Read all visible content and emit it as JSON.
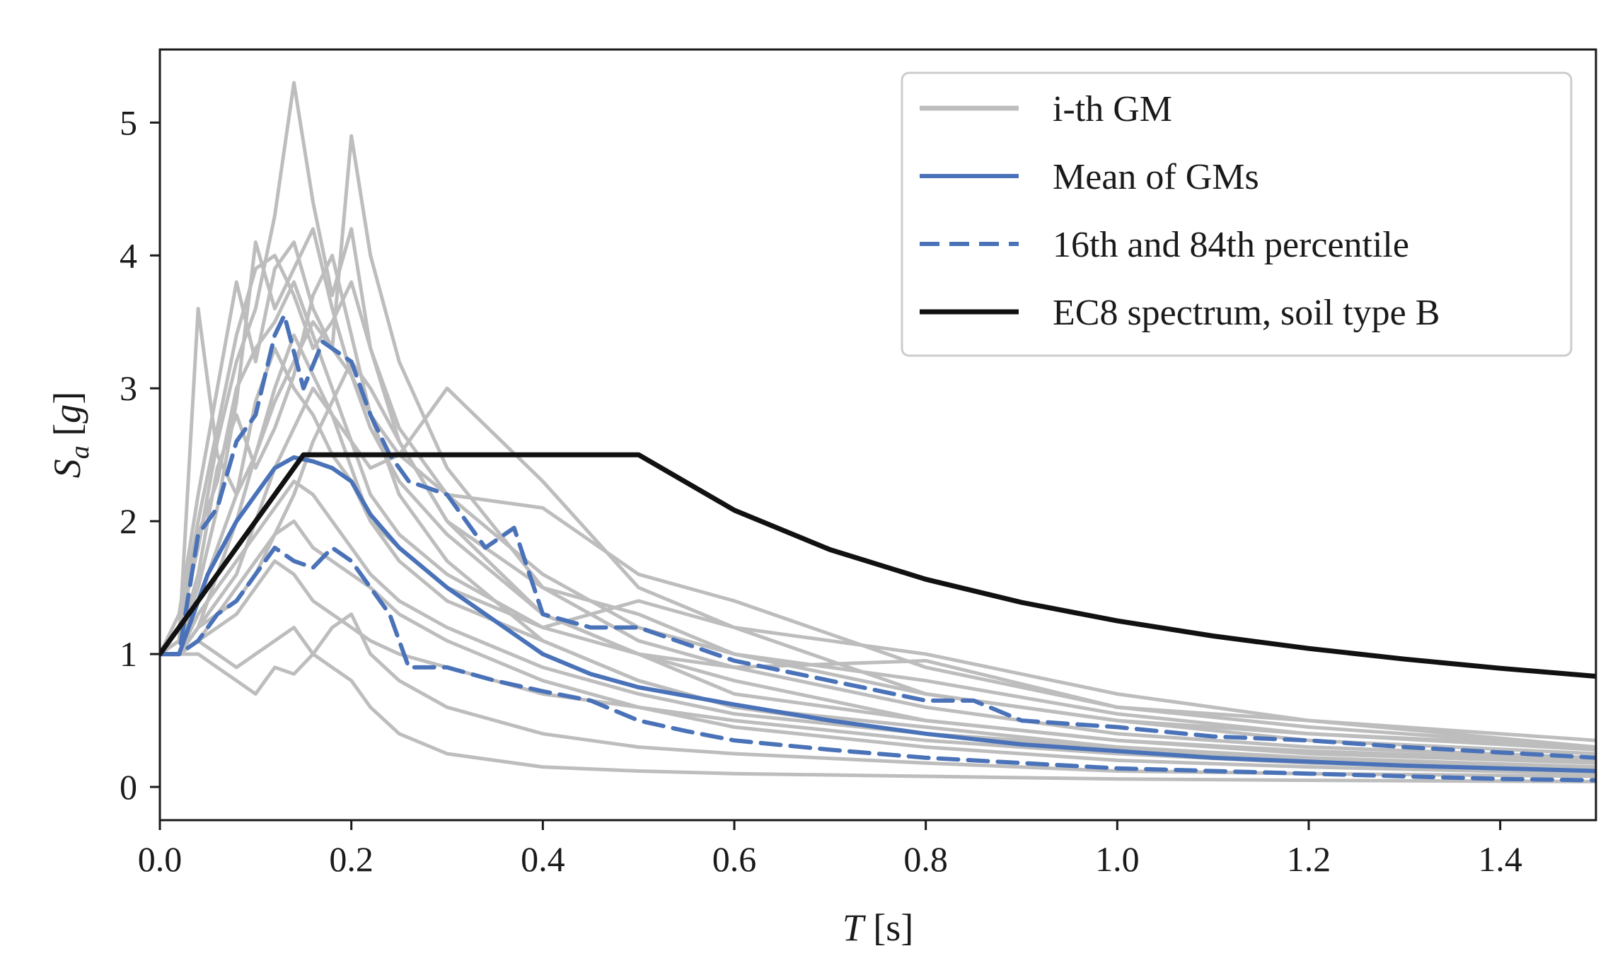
{
  "chart_data": {
    "type": "line",
    "title": "",
    "xlabel": {
      "main": "T",
      "unit": "[s]"
    },
    "ylabel": {
      "main": "S",
      "sub": "a",
      "unit_open": "[",
      "unit_var": "g",
      "unit_close": "]"
    },
    "xlim": [
      0.0,
      1.5
    ],
    "ylim": [
      -0.25,
      5.55
    ],
    "grid": false,
    "legend_position": "top-right",
    "x_ticks": [
      {
        "value": 0.0,
        "label": "0.0"
      },
      {
        "value": 0.2,
        "label": "0.2"
      },
      {
        "value": 0.4,
        "label": "0.4"
      },
      {
        "value": 0.6,
        "label": "0.6"
      },
      {
        "value": 0.8,
        "label": "0.8"
      },
      {
        "value": 1.0,
        "label": "1.0"
      },
      {
        "value": 1.2,
        "label": "1.2"
      },
      {
        "value": 1.4,
        "label": "1.4"
      }
    ],
    "y_ticks": [
      {
        "value": 0,
        "label": "0"
      },
      {
        "value": 1,
        "label": "1"
      },
      {
        "value": 2,
        "label": "2"
      },
      {
        "value": 3,
        "label": "3"
      },
      {
        "value": 4,
        "label": "4"
      },
      {
        "value": 5,
        "label": "5"
      }
    ],
    "colors": {
      "gm": "#bdbdbd",
      "mean": "#4a72b8",
      "perc": "#4a72b8",
      "ec8": "#111111"
    },
    "legend": [
      {
        "label": "i-th GM",
        "style": "gm"
      },
      {
        "label": "Mean of GMs",
        "style": "mean"
      },
      {
        "label": "16th and 84th percentile",
        "style": "perc"
      },
      {
        "label": "EC8 spectrum, soil type B",
        "style": "ec8"
      }
    ],
    "series": [
      {
        "kind": "gm",
        "x": [
          0,
          0.02,
          0.04,
          0.06,
          0.08,
          0.1,
          0.12,
          0.14,
          0.16,
          0.18,
          0.2,
          0.22,
          0.25,
          0.3,
          0.4,
          0.5,
          0.6,
          0.8,
          1.0,
          1.2,
          1.5
        ],
        "y": [
          1.0,
          1.2,
          1.8,
          2.6,
          3.2,
          3.6,
          4.3,
          5.3,
          4.4,
          3.7,
          4.2,
          3.3,
          2.6,
          2.0,
          1.3,
          1.0,
          0.8,
          0.5,
          0.35,
          0.27,
          0.2
        ]
      },
      {
        "kind": "gm",
        "x": [
          0,
          0.02,
          0.04,
          0.06,
          0.08,
          0.1,
          0.12,
          0.14,
          0.16,
          0.18,
          0.2,
          0.22,
          0.25,
          0.3,
          0.4,
          0.5,
          0.6,
          0.8,
          1.0,
          1.2,
          1.5
        ],
        "y": [
          1.0,
          1.3,
          2.2,
          3.0,
          3.8,
          3.2,
          3.9,
          4.1,
          3.6,
          3.3,
          4.9,
          4.0,
          3.2,
          2.4,
          1.5,
          1.1,
          0.9,
          0.6,
          0.4,
          0.3,
          0.22
        ]
      },
      {
        "kind": "gm",
        "x": [
          0,
          0.02,
          0.04,
          0.06,
          0.08,
          0.1,
          0.12,
          0.14,
          0.16,
          0.18,
          0.2,
          0.22,
          0.25,
          0.3,
          0.4,
          0.5,
          0.6,
          0.8,
          1.0,
          1.2,
          1.5
        ],
        "y": [
          1.0,
          1.1,
          3.6,
          2.5,
          2.2,
          2.9,
          3.3,
          3.0,
          2.8,
          2.5,
          2.3,
          2.0,
          1.7,
          1.4,
          1.1,
          0.8,
          0.6,
          0.45,
          0.3,
          0.22,
          0.15
        ]
      },
      {
        "kind": "gm",
        "x": [
          0,
          0.02,
          0.04,
          0.06,
          0.08,
          0.1,
          0.12,
          0.14,
          0.16,
          0.18,
          0.2,
          0.22,
          0.25,
          0.3,
          0.4,
          0.5,
          0.6,
          0.8,
          1.0,
          1.2,
          1.5
        ],
        "y": [
          1.0,
          1.1,
          1.5,
          2.1,
          2.9,
          4.1,
          3.6,
          3.9,
          4.2,
          3.6,
          3.1,
          2.8,
          2.5,
          2.2,
          2.1,
          1.6,
          1.4,
          0.9,
          0.6,
          0.45,
          0.3
        ]
      },
      {
        "kind": "gm",
        "x": [
          0,
          0.02,
          0.04,
          0.06,
          0.08,
          0.1,
          0.12,
          0.14,
          0.16,
          0.18,
          0.2,
          0.22,
          0.25,
          0.3,
          0.4,
          0.5,
          0.6,
          0.8,
          1.0,
          1.2,
          1.5
        ],
        "y": [
          1.0,
          1.0,
          1.2,
          1.6,
          2.0,
          2.5,
          3.0,
          3.4,
          3.1,
          2.8,
          2.6,
          2.4,
          2.5,
          3.0,
          2.3,
          1.5,
          1.2,
          0.7,
          0.5,
          0.4,
          0.28
        ]
      },
      {
        "kind": "gm",
        "x": [
          0,
          0.02,
          0.04,
          0.06,
          0.08,
          0.1,
          0.12,
          0.14,
          0.16,
          0.18,
          0.2,
          0.22,
          0.25,
          0.3,
          0.4,
          0.5,
          0.6,
          0.8,
          1.0,
          1.2,
          1.5
        ],
        "y": [
          1.0,
          1.0,
          1.1,
          1.0,
          0.9,
          1.0,
          1.1,
          1.2,
          1.0,
          0.9,
          0.8,
          0.6,
          0.4,
          0.25,
          0.15,
          0.12,
          0.1,
          0.08,
          0.06,
          0.05,
          0.04
        ]
      },
      {
        "kind": "gm",
        "x": [
          0,
          0.02,
          0.04,
          0.06,
          0.08,
          0.1,
          0.12,
          0.14,
          0.16,
          0.18,
          0.2,
          0.22,
          0.25,
          0.3,
          0.4,
          0.5,
          0.6,
          0.8,
          1.0,
          1.2,
          1.5
        ],
        "y": [
          1.0,
          1.0,
          1.0,
          0.9,
          0.8,
          0.7,
          0.9,
          0.85,
          1.0,
          1.2,
          1.3,
          1.0,
          0.8,
          0.6,
          0.4,
          0.3,
          0.25,
          0.18,
          0.12,
          0.1,
          0.08
        ]
      },
      {
        "kind": "gm",
        "x": [
          0,
          0.02,
          0.04,
          0.06,
          0.08,
          0.1,
          0.12,
          0.14,
          0.16,
          0.18,
          0.2,
          0.22,
          0.25,
          0.3,
          0.4,
          0.5,
          0.6,
          0.8,
          1.0,
          1.2,
          1.5
        ],
        "y": [
          1.0,
          1.2,
          1.9,
          2.3,
          3.0,
          3.3,
          3.5,
          3.8,
          3.4,
          3.0,
          2.6,
          2.2,
          1.9,
          1.6,
          1.2,
          1.0,
          0.9,
          0.95,
          0.6,
          0.5,
          0.3
        ]
      },
      {
        "kind": "gm",
        "x": [
          0,
          0.02,
          0.04,
          0.06,
          0.08,
          0.1,
          0.12,
          0.14,
          0.16,
          0.18,
          0.2,
          0.22,
          0.25,
          0.3,
          0.4,
          0.5,
          0.6,
          0.8,
          1.0,
          1.2,
          1.5
        ],
        "y": [
          1.0,
          1.1,
          1.4,
          1.8,
          2.2,
          2.5,
          2.9,
          3.2,
          3.5,
          3.3,
          3.1,
          2.7,
          2.3,
          1.9,
          1.3,
          1.0,
          0.7,
          0.5,
          0.35,
          0.25,
          0.18
        ]
      },
      {
        "kind": "gm",
        "x": [
          0,
          0.02,
          0.04,
          0.06,
          0.08,
          0.1,
          0.12,
          0.14,
          0.16,
          0.18,
          0.2,
          0.22,
          0.25,
          0.3,
          0.4,
          0.5,
          0.6,
          0.8,
          1.0,
          1.2,
          1.5
        ],
        "y": [
          1.0,
          1.0,
          1.3,
          1.5,
          1.7,
          1.9,
          2.1,
          2.3,
          2.2,
          2.0,
          1.8,
          1.6,
          1.4,
          1.2,
          0.9,
          0.7,
          0.55,
          0.4,
          0.3,
          0.2,
          0.15
        ]
      },
      {
        "kind": "gm",
        "x": [
          0,
          0.02,
          0.04,
          0.06,
          0.08,
          0.1,
          0.12,
          0.14,
          0.16,
          0.18,
          0.2,
          0.22,
          0.25,
          0.3,
          0.4,
          0.5,
          0.6,
          0.8,
          1.0,
          1.2,
          1.5
        ],
        "y": [
          1.0,
          1.0,
          1.2,
          1.4,
          1.6,
          2.0,
          2.4,
          2.7,
          3.0,
          2.8,
          2.4,
          2.0,
          1.8,
          1.5,
          1.2,
          1.4,
          1.2,
          1.0,
          0.7,
          0.5,
          0.35
        ]
      },
      {
        "kind": "gm",
        "x": [
          0,
          0.02,
          0.04,
          0.06,
          0.08,
          0.1,
          0.12,
          0.14,
          0.16,
          0.18,
          0.2,
          0.22,
          0.25,
          0.3,
          0.4,
          0.5,
          0.6,
          0.8,
          1.0,
          1.2,
          1.5
        ],
        "y": [
          1.0,
          1.1,
          1.6,
          2.4,
          2.8,
          2.4,
          2.7,
          3.1,
          3.7,
          4.0,
          3.4,
          2.8,
          2.2,
          1.7,
          1.1,
          0.8,
          0.6,
          0.4,
          0.28,
          0.2,
          0.14
        ]
      },
      {
        "kind": "gm",
        "x": [
          0,
          0.02,
          0.04,
          0.06,
          0.08,
          0.1,
          0.12,
          0.14,
          0.16,
          0.18,
          0.2,
          0.22,
          0.25,
          0.3,
          0.4,
          0.5,
          0.6,
          0.8,
          1.0,
          1.2,
          1.5
        ],
        "y": [
          1.0,
          1.0,
          1.1,
          1.3,
          1.4,
          1.6,
          1.9,
          2.2,
          2.6,
          2.9,
          3.2,
          3.0,
          2.6,
          2.0,
          1.5,
          1.3,
          1.0,
          0.8,
          0.55,
          0.4,
          0.3
        ]
      },
      {
        "kind": "gm",
        "x": [
          0,
          0.02,
          0.04,
          0.06,
          0.08,
          0.1,
          0.12,
          0.14,
          0.16,
          0.18,
          0.2,
          0.22,
          0.25,
          0.3,
          0.4,
          0.5,
          0.6,
          0.8,
          1.0,
          1.2,
          1.5
        ],
        "y": [
          1.0,
          1.0,
          1.2,
          1.3,
          1.5,
          1.7,
          1.9,
          2.0,
          1.8,
          1.7,
          1.6,
          1.5,
          1.3,
          1.1,
          0.8,
          0.6,
          0.45,
          0.3,
          0.2,
          0.15,
          0.1
        ]
      },
      {
        "kind": "gm",
        "x": [
          0,
          0.02,
          0.04,
          0.06,
          0.08,
          0.1,
          0.12,
          0.14,
          0.16,
          0.18,
          0.2,
          0.22,
          0.25,
          0.3,
          0.4,
          0.5,
          0.6,
          0.8,
          1.0,
          1.2,
          1.5
        ],
        "y": [
          1.0,
          1.2,
          2.0,
          2.7,
          3.4,
          3.9,
          4.0,
          3.7,
          3.3,
          3.5,
          3.8,
          3.3,
          2.7,
          2.2,
          1.6,
          1.2,
          1.0,
          0.7,
          0.5,
          0.35,
          0.25
        ]
      },
      {
        "kind": "gm",
        "x": [
          0,
          0.02,
          0.04,
          0.06,
          0.08,
          0.1,
          0.12,
          0.14,
          0.16,
          0.18,
          0.2,
          0.22,
          0.25,
          0.3,
          0.4,
          0.5,
          0.6,
          0.8,
          1.0,
          1.2,
          1.5
        ],
        "y": [
          1.0,
          1.0,
          1.1,
          1.2,
          1.3,
          1.5,
          1.7,
          1.6,
          1.4,
          1.3,
          1.2,
          1.1,
          1.0,
          0.9,
          0.7,
          0.6,
          0.5,
          0.35,
          0.25,
          0.18,
          0.12
        ]
      },
      {
        "kind": "mean",
        "x": [
          0,
          0.02,
          0.05,
          0.08,
          0.1,
          0.12,
          0.14,
          0.16,
          0.18,
          0.2,
          0.22,
          0.25,
          0.3,
          0.35,
          0.4,
          0.45,
          0.5,
          0.6,
          0.7,
          0.8,
          0.9,
          1.0,
          1.1,
          1.2,
          1.3,
          1.4,
          1.5
        ],
        "y": [
          1.0,
          1.0,
          1.6,
          2.0,
          2.2,
          2.4,
          2.48,
          2.45,
          2.4,
          2.3,
          2.05,
          1.8,
          1.5,
          1.25,
          1.0,
          0.85,
          0.75,
          0.62,
          0.5,
          0.4,
          0.32,
          0.27,
          0.22,
          0.19,
          0.16,
          0.14,
          0.12
        ]
      },
      {
        "kind": "perc",
        "x": [
          0,
          0.02,
          0.04,
          0.06,
          0.08,
          0.1,
          0.12,
          0.13,
          0.15,
          0.17,
          0.2,
          0.22,
          0.24,
          0.26,
          0.3,
          0.34,
          0.37,
          0.4,
          0.45,
          0.5,
          0.6,
          0.7,
          0.8,
          0.85,
          0.9,
          1.0,
          1.1,
          1.2,
          1.3,
          1.4,
          1.5
        ],
        "y": [
          1.0,
          1.0,
          1.9,
          2.1,
          2.6,
          2.8,
          3.4,
          3.55,
          3.0,
          3.35,
          3.2,
          2.8,
          2.5,
          2.3,
          2.2,
          1.8,
          1.95,
          1.3,
          1.2,
          1.2,
          0.95,
          0.8,
          0.65,
          0.65,
          0.5,
          0.45,
          0.38,
          0.35,
          0.3,
          0.26,
          0.22
        ]
      },
      {
        "kind": "perc",
        "x": [
          0,
          0.02,
          0.04,
          0.06,
          0.08,
          0.1,
          0.12,
          0.14,
          0.16,
          0.18,
          0.2,
          0.22,
          0.24,
          0.26,
          0.3,
          0.35,
          0.4,
          0.45,
          0.5,
          0.55,
          0.6,
          0.7,
          0.8,
          0.9,
          1.0,
          1.1,
          1.2,
          1.3,
          1.4,
          1.5
        ],
        "y": [
          1.0,
          1.0,
          1.1,
          1.3,
          1.4,
          1.6,
          1.8,
          1.7,
          1.65,
          1.8,
          1.7,
          1.5,
          1.3,
          0.9,
          0.9,
          0.8,
          0.72,
          0.65,
          0.5,
          0.42,
          0.35,
          0.28,
          0.22,
          0.18,
          0.14,
          0.12,
          0.1,
          0.08,
          0.06,
          0.05
        ]
      },
      {
        "kind": "ec8",
        "x": [
          0,
          0.15,
          0.5,
          0.6,
          0.7,
          0.8,
          0.9,
          1.0,
          1.1,
          1.2,
          1.3,
          1.4,
          1.5
        ],
        "y": [
          1.0,
          2.5,
          2.5,
          2.083,
          1.786,
          1.563,
          1.389,
          1.25,
          1.136,
          1.042,
          0.962,
          0.893,
          0.833
        ]
      }
    ]
  }
}
